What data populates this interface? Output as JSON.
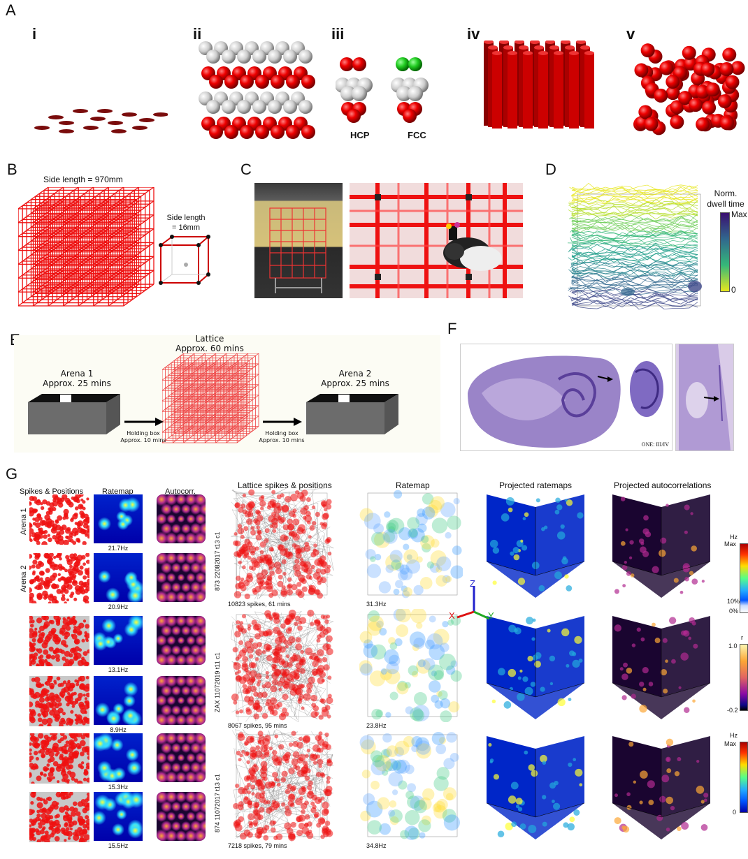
{
  "panels": {
    "A": {
      "label": "A",
      "sub": [
        "i",
        "ii",
        "iii",
        "iv",
        "v"
      ],
      "hcp": "HCP",
      "fcc": "FCC"
    },
    "B": {
      "label": "B",
      "big": "Side length = 970mm",
      "small1": "Side length",
      "small2": "= 16mm"
    },
    "C": {
      "label": "C"
    },
    "D": {
      "label": "D",
      "cb_title1": "Norm.",
      "cb_title2": "dwell time",
      "cb_max": "Max",
      "cb_min": "0"
    },
    "E": {
      "label": "E",
      "arena1_l1": "Arena 1",
      "arena1_l2": "Approx. 25 mins",
      "lattice_l1": "Lattice",
      "lattice_l2": "Approx. 60 mins",
      "arena2_l1": "Arena 2",
      "arena2_l2": "Approx. 25 mins",
      "hold1": "Holding box",
      "hold1b": "Approx. 10 mins",
      "hold2": "Holding box",
      "hold2b": "Approx. 10 mins"
    },
    "F": {
      "label": "F",
      "caption": "ONE: III/IV"
    },
    "G": {
      "label": "G",
      "col_spikes": "Spikes & Positions",
      "col_ratemap": "Ratemap",
      "col_autocorr": "Autocorr.",
      "col_lattice": "Lattice spikes & positions",
      "col_ratemap3d": "Ratemap",
      "col_proj_rm": "Projected ratemaps",
      "col_proj_ac": "Projected autocorrelations",
      "row_arena1": "Arena 1",
      "row_arena2": "Arena 2",
      "rates": [
        "21.7Hz",
        "20.9Hz",
        "13.1Hz",
        "8.9Hz",
        "15.3Hz",
        "15.5Hz"
      ],
      "cells": [
        {
          "id": "873 22082017 t13 c1",
          "spikes": "10823 spikes, 61 mins",
          "rate3d": "31.3Hz"
        },
        {
          "id": "ZAX 11072019 t11 c1",
          "spikes": "8067 spikes, 95 mins",
          "rate3d": "23.8Hz"
        },
        {
          "id": "874 11072017 t13 c1",
          "spikes": "7218 spikes, 79 mins",
          "rate3d": "34.8Hz"
        }
      ],
      "axes": {
        "x": "X",
        "y": "Y",
        "z": "Z"
      },
      "cb1": {
        "unit": "Hz",
        "max": "Max",
        "p10": "10%",
        "p0": "0%"
      },
      "cb2": {
        "unit": "r",
        "max": "1.0",
        "min": "-0.2"
      },
      "cb3": {
        "unit": "Hz",
        "max": "Max",
        "min": "0"
      }
    }
  }
}
